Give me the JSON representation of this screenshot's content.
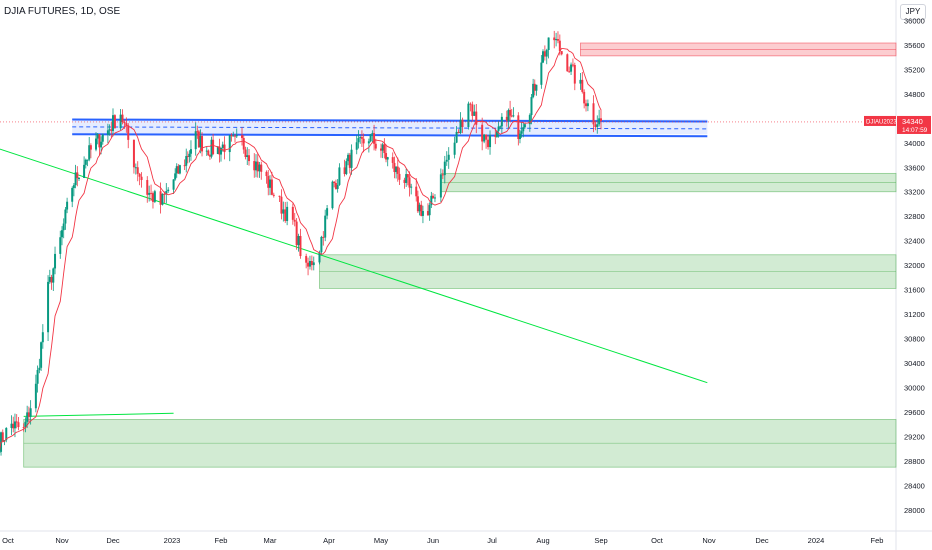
{
  "header": {
    "title": "DJIA FUTURES, 1D, OSE",
    "currency": "JPY"
  },
  "chart_data": {
    "type": "candlestick",
    "title": "DJIA FUTURES, 1D, OSE",
    "ylim": [
      28000,
      36300
    ],
    "x_ticks": [
      "Oct",
      "Nov",
      "Dec",
      "2023",
      "Feb",
      "Mar",
      "Apr",
      "May",
      "Jun",
      "Jul",
      "Aug",
      "Sep",
      "Oct",
      "Nov",
      "Dec",
      "2024",
      "Feb"
    ],
    "y_ticks": [
      28000,
      28400,
      28800,
      29200,
      29600,
      30000,
      30400,
      30800,
      31200,
      31600,
      32000,
      32400,
      32800,
      33200,
      33600,
      34000,
      34400,
      34800,
      35200,
      35600,
      36000
    ],
    "last_price": {
      "label": "DJIAU2023",
      "value": "34340",
      "countdown": "14:07:59"
    },
    "close_path": [
      [
        "2022-09-26",
        29100
      ],
      [
        "2022-10-03",
        29400
      ],
      [
        "2022-10-10",
        29300
      ],
      [
        "2022-10-17",
        30000
      ],
      [
        "2022-10-24",
        31600
      ],
      [
        "2022-10-31",
        32400
      ],
      [
        "2022-11-07",
        33300
      ],
      [
        "2022-11-14",
        33700
      ],
      [
        "2022-11-21",
        34000
      ],
      [
        "2022-11-28",
        34200
      ],
      [
        "2022-12-05",
        34500
      ],
      [
        "2022-12-12",
        33700
      ],
      [
        "2022-12-19",
        33200
      ],
      [
        "2022-12-26",
        33000
      ],
      [
        "2023-01-02",
        33400
      ],
      [
        "2023-01-09",
        33700
      ],
      [
        "2023-01-16",
        34100
      ],
      [
        "2023-01-23",
        33900
      ],
      [
        "2023-01-30",
        33900
      ],
      [
        "2023-02-06",
        34000
      ],
      [
        "2023-02-13",
        34000
      ],
      [
        "2023-02-20",
        33700
      ],
      [
        "2023-02-27",
        33400
      ],
      [
        "2023-03-06",
        33000
      ],
      [
        "2023-03-13",
        32700
      ],
      [
        "2023-03-20",
        31900
      ],
      [
        "2023-03-27",
        32300
      ],
      [
        "2023-04-03",
        33300
      ],
      [
        "2023-04-10",
        33600
      ],
      [
        "2023-04-17",
        33900
      ],
      [
        "2023-04-24",
        34100
      ],
      [
        "2023-05-01",
        33900
      ],
      [
        "2023-05-08",
        33600
      ],
      [
        "2023-05-15",
        33400
      ],
      [
        "2023-05-22",
        33000
      ],
      [
        "2023-05-29",
        32800
      ],
      [
        "2023-06-05",
        33500
      ],
      [
        "2023-06-12",
        34000
      ],
      [
        "2023-06-19",
        34700
      ],
      [
        "2023-06-26",
        34100
      ],
      [
        "2023-07-03",
        34000
      ],
      [
        "2023-07-10",
        34500
      ],
      [
        "2023-07-17",
        34200
      ],
      [
        "2023-07-24",
        34600
      ],
      [
        "2023-07-31",
        35400
      ],
      [
        "2023-08-07",
        35700
      ],
      [
        "2023-08-14",
        35300
      ],
      [
        "2023-08-21",
        34900
      ],
      [
        "2023-08-28",
        34400
      ],
      [
        "2023-09-01",
        34340
      ]
    ],
    "annotations": {
      "horizontal_bands": [
        {
          "color": "#f23645",
          "from": "2023-08-21",
          "y_range": [
            35420,
            35630
          ]
        },
        {
          "color": "#4caf50",
          "from": "2023-06-05",
          "y_range": [
            33200,
            33500
          ]
        },
        {
          "color": "#4caf50",
          "from": "2023-03-27",
          "y_range": [
            31620,
            32170
          ]
        },
        {
          "color": "#4caf50",
          "from": "2022-10-10",
          "y_range": [
            28700,
            29480
          ]
        },
        {
          "color": "#2962ff",
          "from": "2022-11-07",
          "to": "2023-10-31",
          "y_range": [
            34140,
            34380
          ],
          "style": "channel"
        }
      ],
      "trendlines": [
        {
          "color": "#00e640",
          "from": [
            "2022-09-26",
            33900
          ],
          "to": [
            "2023-10-31",
            30080
          ]
        },
        {
          "color": "#00e640",
          "from": [
            "2022-10-10",
            29530
          ],
          "to": [
            "2023-01-02",
            29580
          ]
        }
      ],
      "moving_average_color": "#f23645"
    },
    "colors": {
      "up": "#089981",
      "down": "#f23645"
    }
  }
}
